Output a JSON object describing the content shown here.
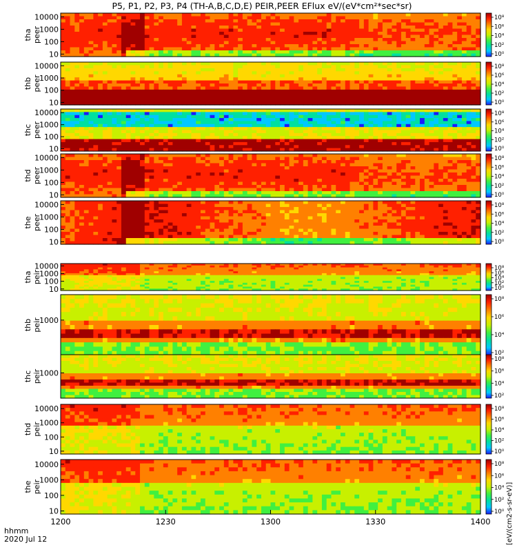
{
  "chart_data": {
    "type": "heatmap",
    "title": "P5, P1, P2, P3, P4 (TH-A,B,C,D,E) PEIR,PEER EFlux eV/(eV*cm²*sec*sr)",
    "x_time_label": "hhmm",
    "x_date_label": "2020 Jul 12",
    "x_ticks": [
      "1200",
      "1230",
      "1300",
      "1330",
      "1400"
    ],
    "xlim": [
      "12:00",
      "14:00"
    ],
    "y_scale": "log",
    "colorbar_unit_label": "[eV/(cm2-s-sr-eV)]",
    "colorbar_colors": [
      "#1a1aff",
      "#00c8ff",
      "#00e0a0",
      "#40f040",
      "#c8f000",
      "#ffd800",
      "#ff8000",
      "#ff2000",
      "#a00000"
    ],
    "panels": [
      {
        "probe": "tha",
        "species": "peer",
        "y_ticks": [
          "10",
          "100",
          "1000",
          "10000"
        ],
        "cbar_ticks": [
          "10⁰",
          "10²",
          "10⁴",
          "10⁶",
          "10⁸"
        ]
      },
      {
        "probe": "thb",
        "species": "peer",
        "y_ticks": [
          "10",
          "100",
          "1000",
          "10000"
        ],
        "cbar_ticks": [
          "10⁰",
          "10²",
          "10⁴",
          "10⁶",
          "10⁸"
        ]
      },
      {
        "probe": "thc",
        "species": "peer",
        "y_ticks": [
          "10",
          "100",
          "1000",
          "10000"
        ],
        "cbar_ticks": [
          "10⁰",
          "10²",
          "10⁴",
          "10⁶",
          "10⁸"
        ]
      },
      {
        "probe": "thd",
        "species": "peer",
        "y_ticks": [
          "10",
          "100",
          "1000",
          "10000"
        ],
        "cbar_ticks": [
          "10⁰",
          "10²",
          "10⁴",
          "10⁶",
          "10⁸"
        ]
      },
      {
        "probe": "the",
        "species": "peer",
        "y_ticks": [
          "10",
          "100",
          "1000",
          "10000"
        ],
        "cbar_ticks": [
          "10⁰",
          "10²",
          "10⁴",
          "10⁶",
          "10⁸"
        ]
      },
      {
        "probe": "tha",
        "species": "peir",
        "y_ticks": [
          "10",
          "100",
          "1000",
          "10000"
        ],
        "cbar_ticks": [
          "10⁰",
          "10²",
          "10⁴",
          "10⁶",
          "10⁸"
        ]
      },
      {
        "probe": "thb",
        "species": "peir",
        "y_ticks": [
          "1000"
        ],
        "cbar_ticks": [
          "10²",
          "10⁴",
          "10⁶",
          "10⁸"
        ]
      },
      {
        "probe": "thc",
        "species": "peir",
        "y_ticks": [
          "1000"
        ],
        "cbar_ticks": [
          "10²",
          "10⁴",
          "10⁶",
          "10⁸"
        ]
      },
      {
        "probe": "thd",
        "species": "peir",
        "y_ticks": [
          "10",
          "100",
          "1000",
          "10000"
        ],
        "cbar_ticks": [
          "10⁰",
          "10²",
          "10⁴",
          "10⁶",
          "10⁸"
        ]
      },
      {
        "probe": "the",
        "species": "peir",
        "y_ticks": [
          "10",
          "100",
          "1000",
          "10000"
        ],
        "cbar_ticks": [
          "10⁰",
          "10²",
          "10⁴",
          "10⁶",
          "10⁸"
        ]
      }
    ]
  }
}
